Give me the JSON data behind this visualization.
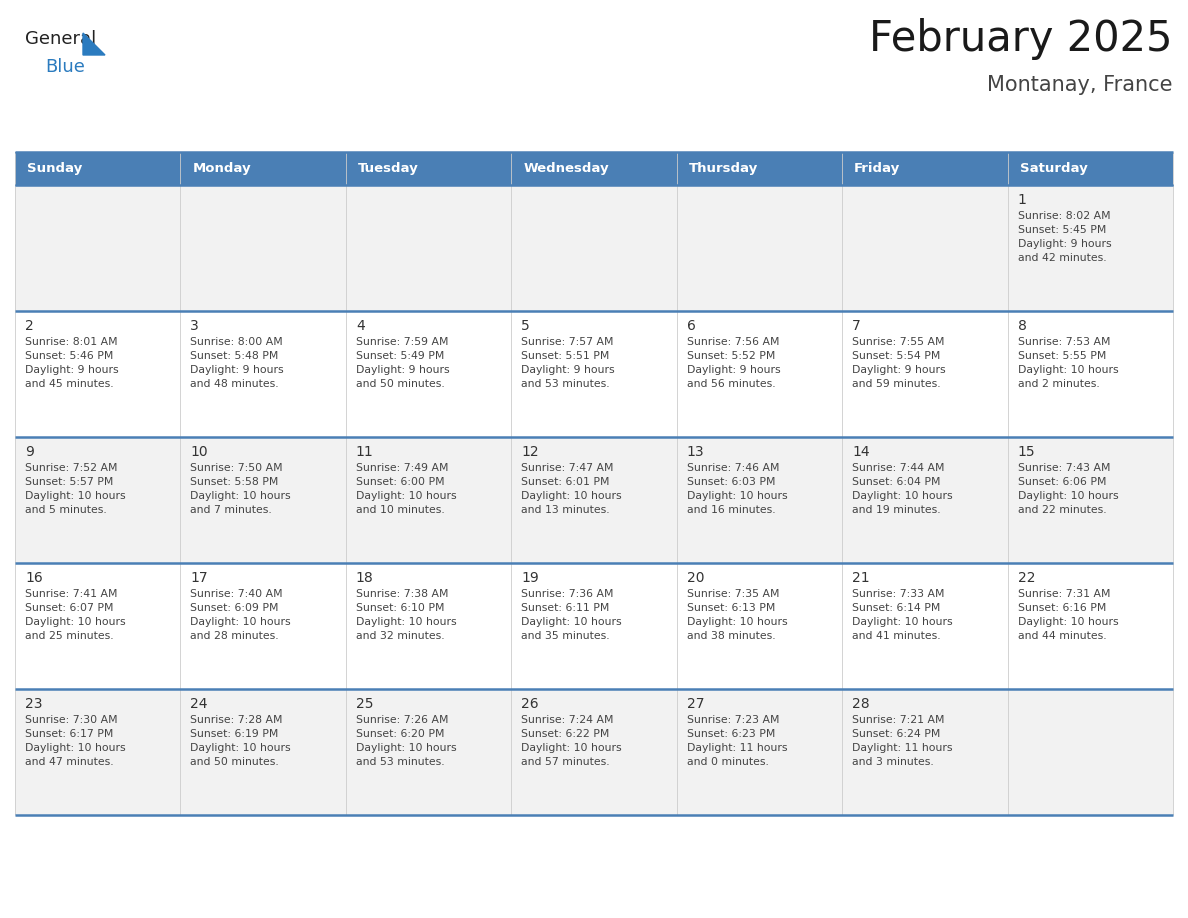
{
  "title": "February 2025",
  "subtitle": "Montanay, France",
  "header_color": "#4a7fb5",
  "header_text_color": "#ffffff",
  "days_of_week": [
    "Sunday",
    "Monday",
    "Tuesday",
    "Wednesday",
    "Thursday",
    "Friday",
    "Saturday"
  ],
  "cell_bg_even": "#f2f2f2",
  "cell_bg_odd": "#ffffff",
  "border_color": "#4a7fb5",
  "grid_color": "#cccccc",
  "text_color": "#333333",
  "info_text_color": "#444444",
  "logo_color1": "#222222",
  "logo_color2": "#2b7bbf",
  "triangle_color": "#2b7bbf",
  "calendar_data": [
    [
      null,
      null,
      null,
      null,
      null,
      null,
      {
        "day": 1,
        "sunrise": "8:02 AM",
        "sunset": "5:45 PM",
        "daylight": "9 hours\nand 42 minutes."
      }
    ],
    [
      {
        "day": 2,
        "sunrise": "8:01 AM",
        "sunset": "5:46 PM",
        "daylight": "9 hours\nand 45 minutes."
      },
      {
        "day": 3,
        "sunrise": "8:00 AM",
        "sunset": "5:48 PM",
        "daylight": "9 hours\nand 48 minutes."
      },
      {
        "day": 4,
        "sunrise": "7:59 AM",
        "sunset": "5:49 PM",
        "daylight": "9 hours\nand 50 minutes."
      },
      {
        "day": 5,
        "sunrise": "7:57 AM",
        "sunset": "5:51 PM",
        "daylight": "9 hours\nand 53 minutes."
      },
      {
        "day": 6,
        "sunrise": "7:56 AM",
        "sunset": "5:52 PM",
        "daylight": "9 hours\nand 56 minutes."
      },
      {
        "day": 7,
        "sunrise": "7:55 AM",
        "sunset": "5:54 PM",
        "daylight": "9 hours\nand 59 minutes."
      },
      {
        "day": 8,
        "sunrise": "7:53 AM",
        "sunset": "5:55 PM",
        "daylight": "10 hours\nand 2 minutes."
      }
    ],
    [
      {
        "day": 9,
        "sunrise": "7:52 AM",
        "sunset": "5:57 PM",
        "daylight": "10 hours\nand 5 minutes."
      },
      {
        "day": 10,
        "sunrise": "7:50 AM",
        "sunset": "5:58 PM",
        "daylight": "10 hours\nand 7 minutes."
      },
      {
        "day": 11,
        "sunrise": "7:49 AM",
        "sunset": "6:00 PM",
        "daylight": "10 hours\nand 10 minutes."
      },
      {
        "day": 12,
        "sunrise": "7:47 AM",
        "sunset": "6:01 PM",
        "daylight": "10 hours\nand 13 minutes."
      },
      {
        "day": 13,
        "sunrise": "7:46 AM",
        "sunset": "6:03 PM",
        "daylight": "10 hours\nand 16 minutes."
      },
      {
        "day": 14,
        "sunrise": "7:44 AM",
        "sunset": "6:04 PM",
        "daylight": "10 hours\nand 19 minutes."
      },
      {
        "day": 15,
        "sunrise": "7:43 AM",
        "sunset": "6:06 PM",
        "daylight": "10 hours\nand 22 minutes."
      }
    ],
    [
      {
        "day": 16,
        "sunrise": "7:41 AM",
        "sunset": "6:07 PM",
        "daylight": "10 hours\nand 25 minutes."
      },
      {
        "day": 17,
        "sunrise": "7:40 AM",
        "sunset": "6:09 PM",
        "daylight": "10 hours\nand 28 minutes."
      },
      {
        "day": 18,
        "sunrise": "7:38 AM",
        "sunset": "6:10 PM",
        "daylight": "10 hours\nand 32 minutes."
      },
      {
        "day": 19,
        "sunrise": "7:36 AM",
        "sunset": "6:11 PM",
        "daylight": "10 hours\nand 35 minutes."
      },
      {
        "day": 20,
        "sunrise": "7:35 AM",
        "sunset": "6:13 PM",
        "daylight": "10 hours\nand 38 minutes."
      },
      {
        "day": 21,
        "sunrise": "7:33 AM",
        "sunset": "6:14 PM",
        "daylight": "10 hours\nand 41 minutes."
      },
      {
        "day": 22,
        "sunrise": "7:31 AM",
        "sunset": "6:16 PM",
        "daylight": "10 hours\nand 44 minutes."
      }
    ],
    [
      {
        "day": 23,
        "sunrise": "7:30 AM",
        "sunset": "6:17 PM",
        "daylight": "10 hours\nand 47 minutes."
      },
      {
        "day": 24,
        "sunrise": "7:28 AM",
        "sunset": "6:19 PM",
        "daylight": "10 hours\nand 50 minutes."
      },
      {
        "day": 25,
        "sunrise": "7:26 AM",
        "sunset": "6:20 PM",
        "daylight": "10 hours\nand 53 minutes."
      },
      {
        "day": 26,
        "sunrise": "7:24 AM",
        "sunset": "6:22 PM",
        "daylight": "10 hours\nand 57 minutes."
      },
      {
        "day": 27,
        "sunrise": "7:23 AM",
        "sunset": "6:23 PM",
        "daylight": "11 hours\nand 0 minutes."
      },
      {
        "day": 28,
        "sunrise": "7:21 AM",
        "sunset": "6:24 PM",
        "daylight": "11 hours\nand 3 minutes."
      },
      null
    ]
  ]
}
